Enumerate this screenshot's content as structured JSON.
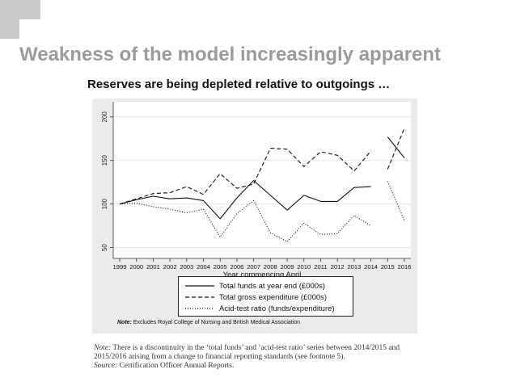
{
  "slide": {
    "title": "Weakness of the model increasingly apparent",
    "subtitle": "Reserves are being depleted relative to outgoings …"
  },
  "chart_note": {
    "prefix": "Note:",
    "text": " Excludes Royal College of Nursing and British Medical Association"
  },
  "footnote": {
    "note_prefix": "Note:",
    "note_text": " There is a discontinuity in the ‘total funds’ and ‘acid-test ratio’ series between 2014/2015 and 2015/2016 arising from a change to financial reporting standards (see footnote 5).",
    "source_prefix": "Source:",
    "source_text": " Certification Officer Annual Reports."
  },
  "chart_data": {
    "type": "line",
    "title": "",
    "xlabel": "Year commencing April",
    "ylabel": "",
    "x": [
      1999,
      2000,
      2001,
      2002,
      2003,
      2004,
      2005,
      2006,
      2007,
      2008,
      2009,
      2010,
      2011,
      2012,
      2013,
      2014,
      2015,
      2016
    ],
    "x_tick_labels": [
      "1999",
      "2000",
      "2001",
      "2002",
      "2003",
      "2004",
      "2005",
      "2006",
      "2007",
      "2008",
      "2009",
      "2010",
      "2011",
      "2012",
      "2013",
      "2014",
      "2015",
      "2016"
    ],
    "y_ticks": [
      50,
      100,
      150,
      200
    ],
    "xlim": [
      1999,
      2016
    ],
    "ylim": [
      45,
      210
    ],
    "grid": "horizontal",
    "legend_position": "bottom",
    "series": [
      {
        "name": "Total funds at year end (£000s)",
        "style": "solid",
        "color": "#111111",
        "segments": [
          {
            "x": [
              1999,
              2000,
              2001,
              2002,
              2003,
              2004,
              2005,
              2006,
              2007,
              2008,
              2009,
              2010,
              2011,
              2012,
              2013,
              2014
            ],
            "y": [
              100,
              105,
              109,
              106,
              107,
              104,
              83,
              107,
              127,
              110,
              93,
              110,
              103,
              103,
              119,
              120
            ]
          },
          {
            "x": [
              2015,
              2016
            ],
            "y": [
              177,
              153
            ]
          }
        ]
      },
      {
        "name": "Total gross expenditure (£000s)",
        "style": "dashed",
        "color": "#111111",
        "segments": [
          {
            "x": [
              1999,
              2000,
              2001,
              2002,
              2003,
              2004,
              2005,
              2006,
              2007,
              2008,
              2009,
              2010,
              2011,
              2012,
              2013,
              2014
            ],
            "y": [
              100,
              106,
              112,
              113,
              120,
              111,
              135,
              118,
              123,
              164,
              163,
              143,
              160,
              156,
              138,
              161
            ]
          },
          {
            "x": [
              2015,
              2016
            ],
            "y": [
              140,
              187
            ]
          }
        ]
      },
      {
        "name": "Acid-test ratio (funds/expenditure)",
        "style": "dotted",
        "color": "#111111",
        "segments": [
          {
            "x": [
              1999,
              2000,
              2001,
              2002,
              2003,
              2004,
              2005,
              2006,
              2007,
              2008,
              2009,
              2010,
              2011,
              2012,
              2013,
              2014
            ],
            "y": [
              100,
              101,
              97,
              94,
              90,
              94,
              62,
              89,
              104,
              67,
              57,
              78,
              65,
              66,
              87,
              75
            ]
          },
          {
            "x": [
              2015,
              2016
            ],
            "y": [
              126,
              81
            ]
          }
        ]
      }
    ]
  }
}
